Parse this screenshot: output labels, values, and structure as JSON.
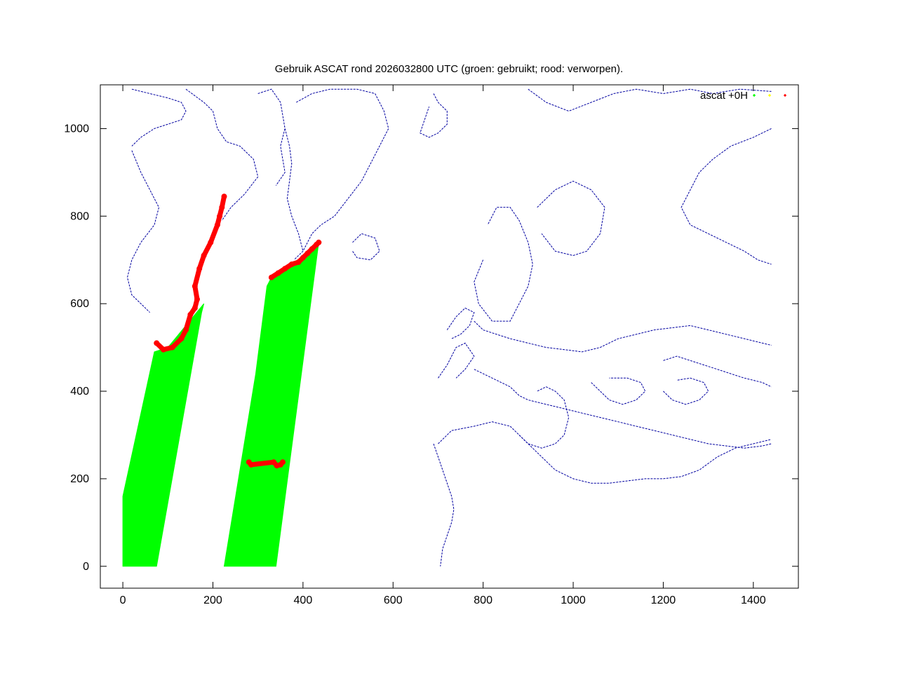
{
  "chart_data": {
    "type": "scatter",
    "title": "Gebruik ASCAT rond 2026032800 UTC (groen: gebruikt; rood: verworpen).",
    "xlabel": "",
    "ylabel": "",
    "xlim": [
      -50,
      1500
    ],
    "ylim": [
      -50,
      1100
    ],
    "x_ticks": [
      0,
      200,
      400,
      600,
      800,
      1000,
      1200,
      1400
    ],
    "y_ticks": [
      0,
      200,
      400,
      600,
      800,
      1000
    ],
    "legend": {
      "position": "top-right",
      "label": "ascat +0H",
      "markers": [
        {
          "name": "used",
          "color": "#00ff00"
        },
        {
          "name": "unused",
          "color": "#ffff00"
        },
        {
          "name": "rejected",
          "color": "#ff0000"
        }
      ]
    },
    "colors": {
      "coastline": "#0000a0",
      "used": "#00ff00",
      "rejected": "#ff0000"
    },
    "series": [
      {
        "role": "swath-1-used",
        "color": "#00ff00",
        "polygon": [
          [
            0,
            0
          ],
          [
            75,
            0
          ],
          [
            175,
            580
          ],
          [
            180,
            600
          ],
          [
            100,
            500
          ],
          [
            70,
            490
          ],
          [
            0,
            160
          ]
        ]
      },
      {
        "role": "swath-2-used",
        "color": "#00ff00",
        "polygon": [
          [
            225,
            0
          ],
          [
            340,
            0
          ],
          [
            435,
            740
          ],
          [
            440,
            740
          ],
          [
            420,
            720
          ],
          [
            400,
            700
          ],
          [
            330,
            660
          ],
          [
            320,
            640
          ],
          [
            295,
            440
          ]
        ]
      },
      {
        "role": "rejected-edge-1",
        "color": "#ff0000",
        "points": [
          [
            75,
            510
          ],
          [
            90,
            495
          ],
          [
            110,
            500
          ],
          [
            130,
            520
          ],
          [
            140,
            540
          ],
          [
            150,
            575
          ],
          [
            160,
            590
          ],
          [
            165,
            610
          ],
          [
            160,
            640
          ],
          [
            170,
            680
          ],
          [
            180,
            710
          ],
          [
            195,
            740
          ],
          [
            210,
            780
          ],
          [
            215,
            800
          ],
          [
            220,
            820
          ],
          [
            225,
            845
          ]
        ]
      },
      {
        "role": "rejected-edge-2",
        "color": "#ff0000",
        "points": [
          [
            330,
            660
          ],
          [
            345,
            670
          ],
          [
            360,
            680
          ],
          [
            375,
            690
          ],
          [
            390,
            695
          ],
          [
            400,
            705
          ],
          [
            410,
            715
          ],
          [
            420,
            725
          ],
          [
            430,
            735
          ],
          [
            435,
            740
          ]
        ]
      },
      {
        "role": "rejected-patch",
        "color": "#ff0000",
        "points": [
          [
            280,
            238
          ],
          [
            285,
            232
          ],
          [
            335,
            238
          ],
          [
            342,
            230
          ],
          [
            350,
            232
          ],
          [
            355,
            238
          ]
        ]
      }
    ],
    "coastline": [
      [
        [
          20,
          1090
        ],
        [
          60,
          1080
        ],
        [
          100,
          1070
        ],
        [
          130,
          1060
        ],
        [
          140,
          1040
        ],
        [
          130,
          1020
        ],
        [
          100,
          1010
        ],
        [
          70,
          1000
        ],
        [
          40,
          980
        ],
        [
          20,
          960
        ]
      ],
      [
        [
          20,
          950
        ],
        [
          40,
          900
        ],
        [
          60,
          860
        ],
        [
          80,
          820
        ],
        [
          70,
          780
        ],
        [
          40,
          740
        ],
        [
          20,
          700
        ],
        [
          10,
          660
        ],
        [
          20,
          620
        ],
        [
          40,
          600
        ],
        [
          60,
          580
        ]
      ],
      [
        [
          140,
          1090
        ],
        [
          180,
          1060
        ],
        [
          200,
          1040
        ],
        [
          210,
          1000
        ],
        [
          230,
          970
        ],
        [
          260,
          960
        ],
        [
          290,
          930
        ],
        [
          300,
          890
        ],
        [
          270,
          850
        ],
        [
          240,
          820
        ],
        [
          220,
          790
        ]
      ],
      [
        [
          300,
          1080
        ],
        [
          330,
          1090
        ],
        [
          350,
          1060
        ],
        [
          360,
          1000
        ],
        [
          350,
          960
        ],
        [
          360,
          900
        ],
        [
          340,
          870
        ]
      ],
      [
        [
          385,
          1060
        ],
        [
          420,
          1080
        ],
        [
          460,
          1090
        ],
        [
          520,
          1090
        ],
        [
          560,
          1080
        ],
        [
          580,
          1040
        ],
        [
          590,
          1000
        ],
        [
          570,
          960
        ],
        [
          550,
          920
        ],
        [
          530,
          880
        ],
        [
          500,
          840
        ],
        [
          470,
          800
        ],
        [
          440,
          780
        ],
        [
          420,
          760
        ],
        [
          400,
          720
        ],
        [
          380,
          700
        ]
      ],
      [
        [
          360,
          1000
        ],
        [
          370,
          960
        ],
        [
          375,
          920
        ],
        [
          370,
          880
        ],
        [
          365,
          840
        ],
        [
          375,
          800
        ],
        [
          390,
          760
        ],
        [
          400,
          720
        ]
      ],
      [
        [
          510,
          740
        ],
        [
          530,
          760
        ],
        [
          560,
          750
        ],
        [
          570,
          720
        ],
        [
          550,
          700
        ],
        [
          520,
          705
        ],
        [
          510,
          720
        ]
      ],
      [
        [
          690,
          1080
        ],
        [
          700,
          1060
        ],
        [
          720,
          1040
        ],
        [
          720,
          1010
        ],
        [
          700,
          990
        ],
        [
          680,
          980
        ],
        [
          660,
          990
        ],
        [
          670,
          1020
        ],
        [
          680,
          1050
        ]
      ],
      [
        [
          800,
          700
        ],
        [
          780,
          650
        ],
        [
          790,
          600
        ],
        [
          820,
          560
        ],
        [
          860,
          560
        ],
        [
          880,
          600
        ],
        [
          900,
          640
        ],
        [
          910,
          690
        ],
        [
          900,
          740
        ],
        [
          880,
          790
        ],
        [
          860,
          820
        ],
        [
          830,
          820
        ],
        [
          810,
          780
        ]
      ],
      [
        [
          920,
          820
        ],
        [
          960,
          860
        ],
        [
          1000,
          880
        ],
        [
          1040,
          860
        ],
        [
          1070,
          820
        ],
        [
          1060,
          760
        ],
        [
          1030,
          720
        ],
        [
          1000,
          710
        ],
        [
          960,
          720
        ],
        [
          930,
          760
        ]
      ],
      [
        [
          900,
          1090
        ],
        [
          940,
          1060
        ],
        [
          990,
          1040
        ],
        [
          1040,
          1060
        ],
        [
          1090,
          1080
        ],
        [
          1140,
          1090
        ],
        [
          1200,
          1080
        ],
        [
          1260,
          1090
        ],
        [
          1310,
          1080
        ],
        [
          1370,
          1090
        ],
        [
          1440,
          1085
        ]
      ],
      [
        [
          1440,
          1000
        ],
        [
          1400,
          980
        ],
        [
          1350,
          960
        ],
        [
          1310,
          930
        ],
        [
          1280,
          900
        ],
        [
          1260,
          860
        ],
        [
          1240,
          820
        ],
        [
          1260,
          780
        ],
        [
          1300,
          760
        ],
        [
          1340,
          740
        ],
        [
          1380,
          720
        ],
        [
          1410,
          700
        ],
        [
          1440,
          690
        ]
      ],
      [
        [
          720,
          540
        ],
        [
          740,
          570
        ],
        [
          760,
          590
        ],
        [
          780,
          580
        ],
        [
          770,
          550
        ],
        [
          750,
          530
        ],
        [
          730,
          520
        ]
      ],
      [
        [
          700,
          430
        ],
        [
          720,
          460
        ],
        [
          740,
          500
        ],
        [
          760,
          510
        ],
        [
          780,
          480
        ],
        [
          760,
          450
        ],
        [
          740,
          430
        ]
      ],
      [
        [
          780,
          560
        ],
        [
          800,
          540
        ],
        [
          830,
          530
        ],
        [
          860,
          520
        ],
        [
          900,
          510
        ],
        [
          940,
          500
        ],
        [
          980,
          495
        ],
        [
          1020,
          490
        ],
        [
          1060,
          500
        ],
        [
          1100,
          520
        ],
        [
          1140,
          530
        ],
        [
          1180,
          540
        ],
        [
          1220,
          545
        ],
        [
          1260,
          550
        ],
        [
          1300,
          540
        ],
        [
          1340,
          530
        ],
        [
          1380,
          520
        ],
        [
          1420,
          510
        ],
        [
          1440,
          505
        ]
      ],
      [
        [
          780,
          450
        ],
        [
          820,
          430
        ],
        [
          860,
          410
        ],
        [
          880,
          390
        ],
        [
          900,
          380
        ],
        [
          940,
          370
        ],
        [
          980,
          360
        ],
        [
          1020,
          350
        ],
        [
          1060,
          340
        ],
        [
          1100,
          330
        ],
        [
          1140,
          320
        ],
        [
          1180,
          310
        ],
        [
          1220,
          300
        ],
        [
          1260,
          290
        ],
        [
          1300,
          280
        ],
        [
          1340,
          275
        ],
        [
          1380,
          270
        ],
        [
          1420,
          275
        ],
        [
          1440,
          280
        ]
      ],
      [
        [
          700,
          280
        ],
        [
          730,
          310
        ],
        [
          780,
          320
        ],
        [
          820,
          330
        ],
        [
          860,
          320
        ],
        [
          880,
          300
        ],
        [
          900,
          280
        ],
        [
          920,
          260
        ],
        [
          940,
          240
        ],
        [
          960,
          220
        ],
        [
          1000,
          200
        ],
        [
          1040,
          190
        ],
        [
          1080,
          190
        ],
        [
          1120,
          195
        ],
        [
          1160,
          200
        ],
        [
          1200,
          200
        ],
        [
          1240,
          205
        ],
        [
          1280,
          220
        ],
        [
          1320,
          250
        ],
        [
          1360,
          270
        ],
        [
          1400,
          280
        ],
        [
          1440,
          290
        ]
      ],
      [
        [
          690,
          280
        ],
        [
          700,
          250
        ],
        [
          710,
          220
        ],
        [
          720,
          190
        ],
        [
          730,
          160
        ],
        [
          735,
          130
        ],
        [
          730,
          100
        ],
        [
          720,
          70
        ],
        [
          710,
          40
        ],
        [
          705,
          0
        ]
      ],
      [
        [
          880,
          300
        ],
        [
          900,
          280
        ],
        [
          930,
          270
        ],
        [
          960,
          280
        ],
        [
          980,
          300
        ],
        [
          990,
          340
        ],
        [
          980,
          380
        ],
        [
          960,
          400
        ],
        [
          940,
          410
        ],
        [
          920,
          400
        ]
      ],
      [
        [
          1040,
          420
        ],
        [
          1060,
          400
        ],
        [
          1080,
          380
        ],
        [
          1110,
          370
        ],
        [
          1140,
          380
        ],
        [
          1160,
          400
        ],
        [
          1150,
          420
        ],
        [
          1120,
          430
        ],
        [
          1080,
          430
        ]
      ],
      [
        [
          1200,
          470
        ],
        [
          1230,
          480
        ],
        [
          1260,
          470
        ],
        [
          1290,
          460
        ],
        [
          1320,
          450
        ],
        [
          1350,
          440
        ],
        [
          1380,
          430
        ],
        [
          1420,
          420
        ],
        [
          1440,
          410
        ]
      ],
      [
        [
          1200,
          400
        ],
        [
          1220,
          380
        ],
        [
          1250,
          370
        ],
        [
          1280,
          380
        ],
        [
          1300,
          400
        ],
        [
          1290,
          420
        ],
        [
          1260,
          430
        ],
        [
          1230,
          425
        ]
      ]
    ]
  }
}
